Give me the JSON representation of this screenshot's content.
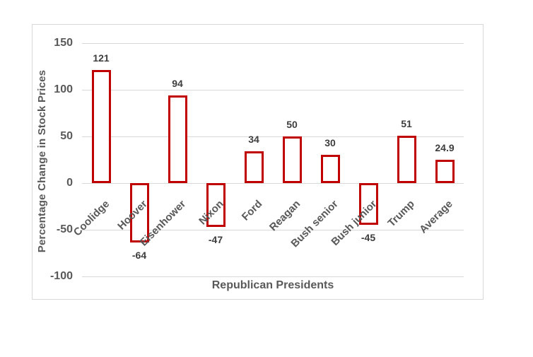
{
  "chart_data": {
    "type": "bar",
    "title": "",
    "categories": [
      "Coolidge",
      "Hoover",
      "Eisenhower",
      "Nixon",
      "Ford",
      "Reagan",
      "Bush senior",
      "Bush junior",
      "Trump",
      "Average"
    ],
    "values": [
      121,
      -64,
      94,
      -47,
      34,
      50,
      30,
      -45,
      51,
      24.9
    ],
    "value_labels": [
      "121",
      "-64",
      "94",
      "-47",
      "34",
      "50",
      "30",
      "-45",
      "51",
      "24.9"
    ],
    "xlabel": "Republican Presidents",
    "ylabel": "Percentage Change in Stock Prices",
    "ylim": [
      -100,
      150
    ],
    "yticks": [
      150,
      100,
      50,
      0,
      -50,
      -100
    ],
    "ytick_labels": [
      "150",
      "100",
      "50",
      "0",
      "-50",
      "-100"
    ],
    "grid": true,
    "legend_position": "none",
    "bar_style": "hollow-outline",
    "styles": {
      "bar_fill": "#ffffff",
      "bar_stroke": "#c00000",
      "grid_color": "#d9d9d9",
      "axis_text_color": "#595959",
      "value_label_color": "#3d3d3d",
      "card_border_color": "#d9d9d9",
      "background": "#ffffff"
    }
  }
}
